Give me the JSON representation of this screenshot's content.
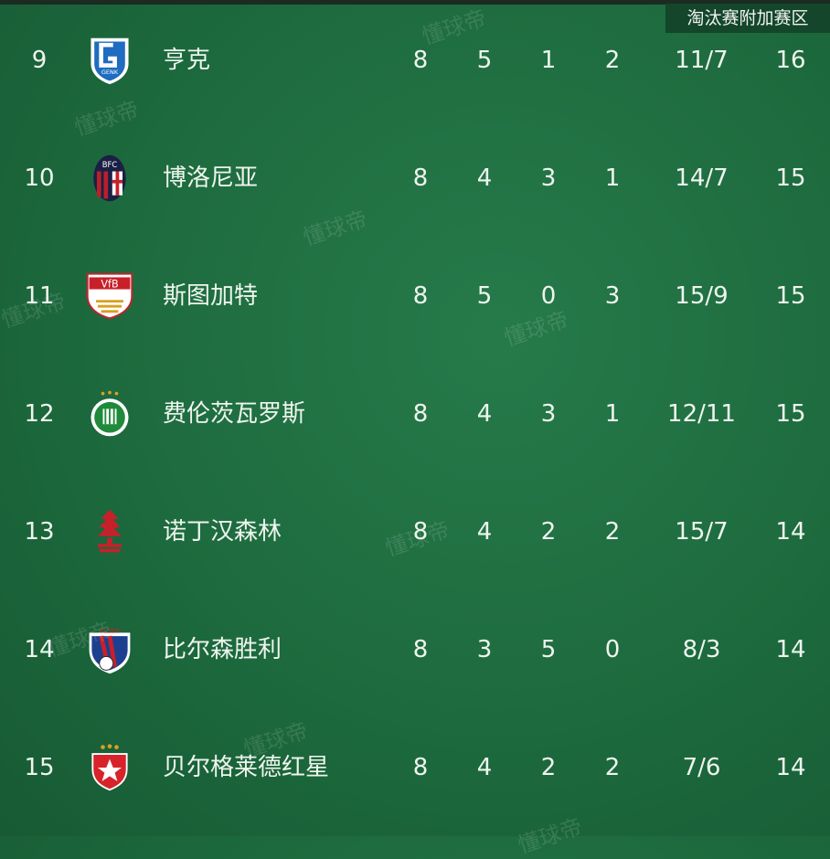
{
  "zone_label": "淘汰赛附加赛区",
  "watermark": "懂球帝",
  "rows": [
    {
      "rank": "9",
      "team": "亨克",
      "logo": "genk-crest",
      "played": "8",
      "won": "5",
      "drawn": "1",
      "lost": "2",
      "goals": "11/7",
      "points": "16"
    },
    {
      "rank": "10",
      "team": "博洛尼亚",
      "logo": "bologna-crest",
      "played": "8",
      "won": "4",
      "drawn": "3",
      "lost": "1",
      "goals": "14/7",
      "points": "15"
    },
    {
      "rank": "11",
      "team": "斯图加特",
      "logo": "stuttgart-crest",
      "played": "8",
      "won": "5",
      "drawn": "0",
      "lost": "3",
      "goals": "15/9",
      "points": "15"
    },
    {
      "rank": "12",
      "team": "费伦茨瓦罗斯",
      "logo": "ferencvaros-crest",
      "played": "8",
      "won": "4",
      "drawn": "3",
      "lost": "1",
      "goals": "12/11",
      "points": "15"
    },
    {
      "rank": "13",
      "team": "诺丁汉森林",
      "logo": "nottingham-forest-crest",
      "played": "8",
      "won": "4",
      "drawn": "2",
      "lost": "2",
      "goals": "15/7",
      "points": "14"
    },
    {
      "rank": "14",
      "team": "比尔森胜利",
      "logo": "viktoria-plzen-crest",
      "played": "8",
      "won": "3",
      "drawn": "5",
      "lost": "0",
      "goals": "8/3",
      "points": "14"
    },
    {
      "rank": "15",
      "team": "贝尔格莱德红星",
      "logo": "red-star-belgrade-crest",
      "played": "8",
      "won": "4",
      "drawn": "2",
      "lost": "2",
      "goals": "7/6",
      "points": "14"
    }
  ]
}
